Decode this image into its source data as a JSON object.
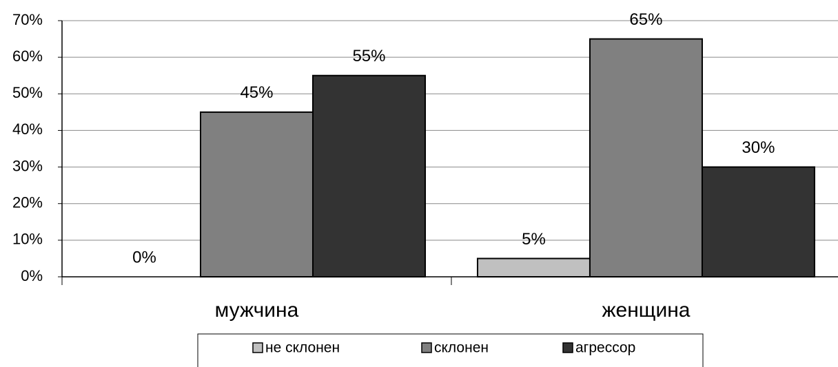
{
  "chart_data": {
    "type": "bar",
    "categories": [
      "мужчина",
      "женщина"
    ],
    "series": [
      {
        "name": "не склонен",
        "color": "#c0c0c0",
        "values": [
          0,
          5
        ],
        "value_labels": [
          "0%",
          "5%"
        ]
      },
      {
        "name": "склонен",
        "color": "#808080",
        "values": [
          45,
          65
        ],
        "value_labels": [
          "45%",
          "65%"
        ]
      },
      {
        "name": "агрессор",
        "color": "#333333",
        "values": [
          55,
          30
        ],
        "value_labels": [
          "55%",
          "30%"
        ]
      }
    ],
    "ylim": [
      0,
      70
    ],
    "yticks": [
      {
        "value": 0,
        "label": "0%"
      },
      {
        "value": 10,
        "label": "10%"
      },
      {
        "value": 20,
        "label": "20%"
      },
      {
        "value": 30,
        "label": "30%"
      },
      {
        "value": 40,
        "label": "40%"
      },
      {
        "value": 50,
        "label": "50%"
      },
      {
        "value": 60,
        "label": "60%"
      },
      {
        "value": 70,
        "label": "70%"
      }
    ],
    "grid": true,
    "legend": "bottom"
  }
}
